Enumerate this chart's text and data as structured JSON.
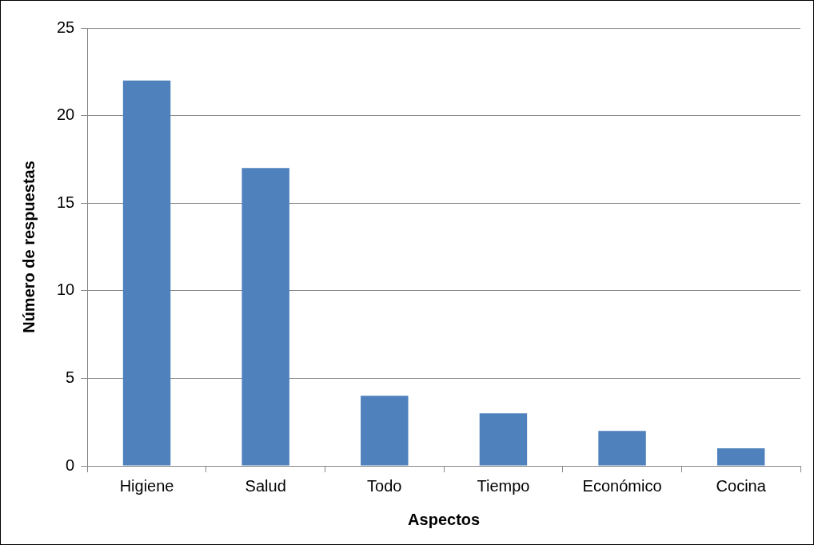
{
  "chart_data": {
    "type": "bar",
    "xlabel": "Aspectos",
    "ylabel": "Número de respuestas",
    "categories": [
      "Higiene",
      "Salud",
      "Todo",
      "Tiempo",
      "Económico",
      "Cocina"
    ],
    "values": [
      22,
      17,
      4,
      3,
      2,
      1
    ],
    "color": "#4f81bd",
    "ylim": [
      0,
      25
    ],
    "yticks": [
      0,
      5,
      10,
      15,
      20,
      25
    ],
    "grid": "y",
    "legend": false
  }
}
